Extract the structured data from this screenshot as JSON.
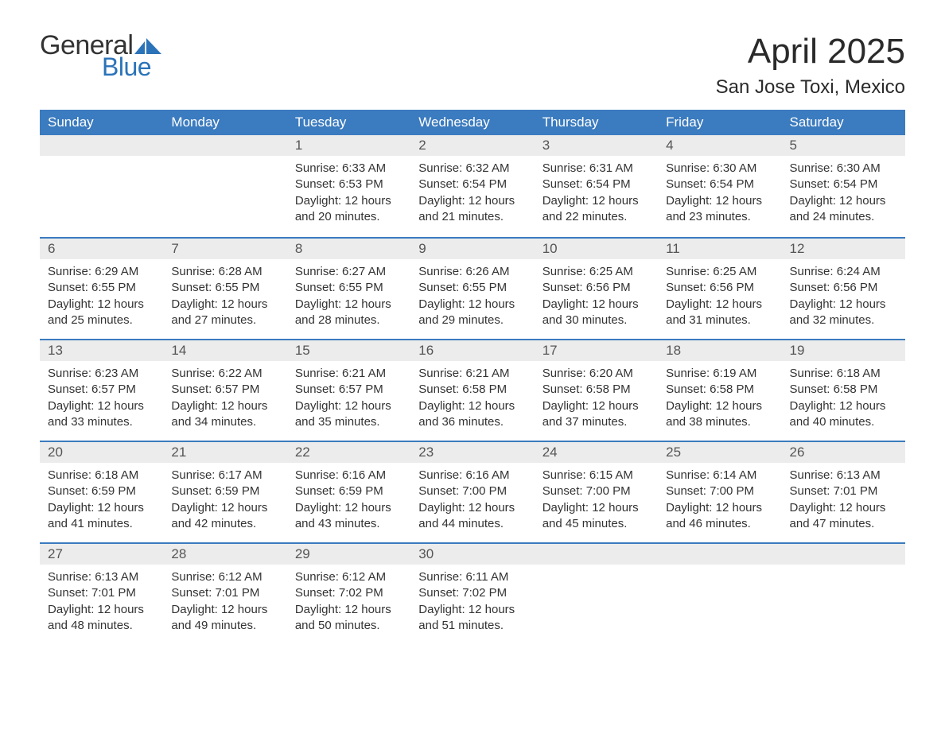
{
  "logo": {
    "general": "General",
    "blue": "Blue",
    "accent_color": "#2b73b8"
  },
  "title": "April 2025",
  "location": "San Jose Toxi, Mexico",
  "colors": {
    "header_bg": "#3b7bbf",
    "header_text": "#ffffff",
    "daynum_bg": "#ececec",
    "daynum_text": "#555555",
    "body_text": "#333333",
    "week_border": "#3b7bbf",
    "page_bg": "#ffffff"
  },
  "typography": {
    "title_fontsize": 44,
    "location_fontsize": 24,
    "weekday_fontsize": 17,
    "daynum_fontsize": 17,
    "body_fontsize": 15
  },
  "weekdays": [
    "Sunday",
    "Monday",
    "Tuesday",
    "Wednesday",
    "Thursday",
    "Friday",
    "Saturday"
  ],
  "weeks": [
    [
      null,
      null,
      {
        "n": "1",
        "sunrise": "Sunrise: 6:33 AM",
        "sunset": "Sunset: 6:53 PM",
        "dl1": "Daylight: 12 hours",
        "dl2": "and 20 minutes."
      },
      {
        "n": "2",
        "sunrise": "Sunrise: 6:32 AM",
        "sunset": "Sunset: 6:54 PM",
        "dl1": "Daylight: 12 hours",
        "dl2": "and 21 minutes."
      },
      {
        "n": "3",
        "sunrise": "Sunrise: 6:31 AM",
        "sunset": "Sunset: 6:54 PM",
        "dl1": "Daylight: 12 hours",
        "dl2": "and 22 minutes."
      },
      {
        "n": "4",
        "sunrise": "Sunrise: 6:30 AM",
        "sunset": "Sunset: 6:54 PM",
        "dl1": "Daylight: 12 hours",
        "dl2": "and 23 minutes."
      },
      {
        "n": "5",
        "sunrise": "Sunrise: 6:30 AM",
        "sunset": "Sunset: 6:54 PM",
        "dl1": "Daylight: 12 hours",
        "dl2": "and 24 minutes."
      }
    ],
    [
      {
        "n": "6",
        "sunrise": "Sunrise: 6:29 AM",
        "sunset": "Sunset: 6:55 PM",
        "dl1": "Daylight: 12 hours",
        "dl2": "and 25 minutes."
      },
      {
        "n": "7",
        "sunrise": "Sunrise: 6:28 AM",
        "sunset": "Sunset: 6:55 PM",
        "dl1": "Daylight: 12 hours",
        "dl2": "and 27 minutes."
      },
      {
        "n": "8",
        "sunrise": "Sunrise: 6:27 AM",
        "sunset": "Sunset: 6:55 PM",
        "dl1": "Daylight: 12 hours",
        "dl2": "and 28 minutes."
      },
      {
        "n": "9",
        "sunrise": "Sunrise: 6:26 AM",
        "sunset": "Sunset: 6:55 PM",
        "dl1": "Daylight: 12 hours",
        "dl2": "and 29 minutes."
      },
      {
        "n": "10",
        "sunrise": "Sunrise: 6:25 AM",
        "sunset": "Sunset: 6:56 PM",
        "dl1": "Daylight: 12 hours",
        "dl2": "and 30 minutes."
      },
      {
        "n": "11",
        "sunrise": "Sunrise: 6:25 AM",
        "sunset": "Sunset: 6:56 PM",
        "dl1": "Daylight: 12 hours",
        "dl2": "and 31 minutes."
      },
      {
        "n": "12",
        "sunrise": "Sunrise: 6:24 AM",
        "sunset": "Sunset: 6:56 PM",
        "dl1": "Daylight: 12 hours",
        "dl2": "and 32 minutes."
      }
    ],
    [
      {
        "n": "13",
        "sunrise": "Sunrise: 6:23 AM",
        "sunset": "Sunset: 6:57 PM",
        "dl1": "Daylight: 12 hours",
        "dl2": "and 33 minutes."
      },
      {
        "n": "14",
        "sunrise": "Sunrise: 6:22 AM",
        "sunset": "Sunset: 6:57 PM",
        "dl1": "Daylight: 12 hours",
        "dl2": "and 34 minutes."
      },
      {
        "n": "15",
        "sunrise": "Sunrise: 6:21 AM",
        "sunset": "Sunset: 6:57 PM",
        "dl1": "Daylight: 12 hours",
        "dl2": "and 35 minutes."
      },
      {
        "n": "16",
        "sunrise": "Sunrise: 6:21 AM",
        "sunset": "Sunset: 6:58 PM",
        "dl1": "Daylight: 12 hours",
        "dl2": "and 36 minutes."
      },
      {
        "n": "17",
        "sunrise": "Sunrise: 6:20 AM",
        "sunset": "Sunset: 6:58 PM",
        "dl1": "Daylight: 12 hours",
        "dl2": "and 37 minutes."
      },
      {
        "n": "18",
        "sunrise": "Sunrise: 6:19 AM",
        "sunset": "Sunset: 6:58 PM",
        "dl1": "Daylight: 12 hours",
        "dl2": "and 38 minutes."
      },
      {
        "n": "19",
        "sunrise": "Sunrise: 6:18 AM",
        "sunset": "Sunset: 6:58 PM",
        "dl1": "Daylight: 12 hours",
        "dl2": "and 40 minutes."
      }
    ],
    [
      {
        "n": "20",
        "sunrise": "Sunrise: 6:18 AM",
        "sunset": "Sunset: 6:59 PM",
        "dl1": "Daylight: 12 hours",
        "dl2": "and 41 minutes."
      },
      {
        "n": "21",
        "sunrise": "Sunrise: 6:17 AM",
        "sunset": "Sunset: 6:59 PM",
        "dl1": "Daylight: 12 hours",
        "dl2": "and 42 minutes."
      },
      {
        "n": "22",
        "sunrise": "Sunrise: 6:16 AM",
        "sunset": "Sunset: 6:59 PM",
        "dl1": "Daylight: 12 hours",
        "dl2": "and 43 minutes."
      },
      {
        "n": "23",
        "sunrise": "Sunrise: 6:16 AM",
        "sunset": "Sunset: 7:00 PM",
        "dl1": "Daylight: 12 hours",
        "dl2": "and 44 minutes."
      },
      {
        "n": "24",
        "sunrise": "Sunrise: 6:15 AM",
        "sunset": "Sunset: 7:00 PM",
        "dl1": "Daylight: 12 hours",
        "dl2": "and 45 minutes."
      },
      {
        "n": "25",
        "sunrise": "Sunrise: 6:14 AM",
        "sunset": "Sunset: 7:00 PM",
        "dl1": "Daylight: 12 hours",
        "dl2": "and 46 minutes."
      },
      {
        "n": "26",
        "sunrise": "Sunrise: 6:13 AM",
        "sunset": "Sunset: 7:01 PM",
        "dl1": "Daylight: 12 hours",
        "dl2": "and 47 minutes."
      }
    ],
    [
      {
        "n": "27",
        "sunrise": "Sunrise: 6:13 AM",
        "sunset": "Sunset: 7:01 PM",
        "dl1": "Daylight: 12 hours",
        "dl2": "and 48 minutes."
      },
      {
        "n": "28",
        "sunrise": "Sunrise: 6:12 AM",
        "sunset": "Sunset: 7:01 PM",
        "dl1": "Daylight: 12 hours",
        "dl2": "and 49 minutes."
      },
      {
        "n": "29",
        "sunrise": "Sunrise: 6:12 AM",
        "sunset": "Sunset: 7:02 PM",
        "dl1": "Daylight: 12 hours",
        "dl2": "and 50 minutes."
      },
      {
        "n": "30",
        "sunrise": "Sunrise: 6:11 AM",
        "sunset": "Sunset: 7:02 PM",
        "dl1": "Daylight: 12 hours",
        "dl2": "and 51 minutes."
      },
      null,
      null,
      null
    ]
  ]
}
